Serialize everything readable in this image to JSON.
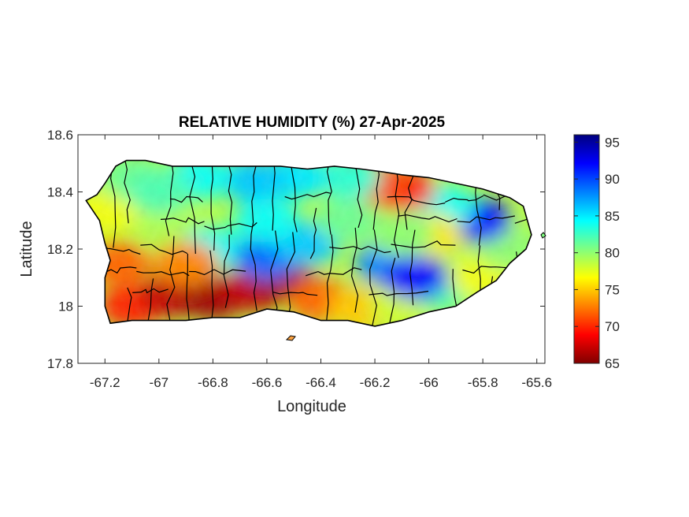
{
  "chart_data": {
    "type": "heatmap",
    "title": "RELATIVE HUMIDITY (%) 27-Apr-2025",
    "xlabel": "Longitude",
    "ylabel": "Latitude",
    "xlim": [
      -67.3,
      -65.57
    ],
    "ylim": [
      17.8,
      18.6
    ],
    "x_ticks": [
      -67.2,
      -67,
      -66.8,
      -66.6,
      -66.4,
      -66.2,
      -66,
      -65.8,
      -65.6
    ],
    "x_tick_labels": [
      "-67.2",
      "-67",
      "-66.8",
      "-66.6",
      "-66.4",
      "-66.2",
      "-66",
      "-65.8",
      "-65.6"
    ],
    "y_ticks": [
      17.8,
      18,
      18.2,
      18.4,
      18.6
    ],
    "y_tick_labels": [
      "17.8",
      "18",
      "18.2",
      "18.4",
      "18.6"
    ],
    "grid": false,
    "colorbar": {
      "min": 65,
      "max": 96,
      "ticks": [
        65,
        70,
        75,
        80,
        85,
        90,
        95
      ],
      "tick_labels": [
        "65",
        "70",
        "75",
        "80",
        "85",
        "90",
        "95"
      ],
      "colormap": "jet-reversed",
      "colors": [
        "#800000",
        "#ff0000",
        "#ff8000",
        "#ffff00",
        "#80ff80",
        "#00ffff",
        "#0080ff",
        "#0000ff",
        "#000080"
      ]
    },
    "region": "Puerto Rico",
    "outline": [
      [
        -67.27,
        18.37
      ],
      [
        -67.23,
        18.39
      ],
      [
        -67.2,
        18.43
      ],
      [
        -67.16,
        18.49
      ],
      [
        -67.12,
        18.51
      ],
      [
        -67.05,
        18.51
      ],
      [
        -66.95,
        18.49
      ],
      [
        -66.85,
        18.49
      ],
      [
        -66.75,
        18.49
      ],
      [
        -66.65,
        18.49
      ],
      [
        -66.55,
        18.49
      ],
      [
        -66.45,
        18.48
      ],
      [
        -66.35,
        18.49
      ],
      [
        -66.25,
        18.48
      ],
      [
        -66.17,
        18.47
      ],
      [
        -66.1,
        18.46
      ],
      [
        -66.0,
        18.45
      ],
      [
        -65.9,
        18.43
      ],
      [
        -65.8,
        18.41
      ],
      [
        -65.7,
        18.38
      ],
      [
        -65.65,
        18.35
      ],
      [
        -65.62,
        18.25
      ],
      [
        -65.64,
        18.2
      ],
      [
        -65.7,
        18.15
      ],
      [
        -65.75,
        18.09
      ],
      [
        -65.82,
        18.05
      ],
      [
        -65.9,
        18.0
      ],
      [
        -66.0,
        17.98
      ],
      [
        -66.1,
        17.95
      ],
      [
        -66.2,
        17.93
      ],
      [
        -66.3,
        17.95
      ],
      [
        -66.4,
        17.95
      ],
      [
        -66.5,
        17.98
      ],
      [
        -66.6,
        17.99
      ],
      [
        -66.7,
        17.96
      ],
      [
        -66.8,
        17.96
      ],
      [
        -66.9,
        17.95
      ],
      [
        -67.0,
        17.95
      ],
      [
        -67.1,
        17.95
      ],
      [
        -67.18,
        17.94
      ],
      [
        -67.2,
        18.0
      ],
      [
        -67.2,
        18.1
      ],
      [
        -67.18,
        18.16
      ],
      [
        -67.2,
        18.22
      ],
      [
        -67.22,
        18.3
      ]
    ],
    "humidity_field": [
      {
        "lon": -67.2,
        "lat": 18.33,
        "value": 77
      },
      {
        "lon": -67.1,
        "lat": 18.45,
        "value": 81
      },
      {
        "lon": -67.15,
        "lat": 18.15,
        "value": 72
      },
      {
        "lon": -67.1,
        "lat": 18.0,
        "value": 70
      },
      {
        "lon": -66.95,
        "lat": 18.04,
        "value": 67
      },
      {
        "lon": -66.8,
        "lat": 18.03,
        "value": 66
      },
      {
        "lon": -66.65,
        "lat": 18.06,
        "value": 67
      },
      {
        "lon": -66.55,
        "lat": 18.1,
        "value": 66
      },
      {
        "lon": -66.4,
        "lat": 18.02,
        "value": 72
      },
      {
        "lon": -66.25,
        "lat": 17.99,
        "value": 75
      },
      {
        "lon": -66.1,
        "lat": 18.0,
        "value": 78
      },
      {
        "lon": -65.95,
        "lat": 18.06,
        "value": 82
      },
      {
        "lon": -65.8,
        "lat": 18.1,
        "value": 77
      },
      {
        "lon": -65.7,
        "lat": 18.2,
        "value": 80
      },
      {
        "lon": -65.82,
        "lat": 18.3,
        "value": 92
      },
      {
        "lon": -65.95,
        "lat": 18.35,
        "value": 84
      },
      {
        "lon": -66.1,
        "lat": 18.41,
        "value": 70
      },
      {
        "lon": -66.2,
        "lat": 18.43,
        "value": 71
      },
      {
        "lon": -66.3,
        "lat": 18.45,
        "value": 83
      },
      {
        "lon": -66.5,
        "lat": 18.45,
        "value": 85
      },
      {
        "lon": -66.65,
        "lat": 18.44,
        "value": 86
      },
      {
        "lon": -66.85,
        "lat": 18.45,
        "value": 84
      },
      {
        "lon": -67.0,
        "lat": 18.4,
        "value": 82
      },
      {
        "lon": -66.95,
        "lat": 18.25,
        "value": 79
      },
      {
        "lon": -66.8,
        "lat": 18.2,
        "value": 84
      },
      {
        "lon": -66.6,
        "lat": 18.17,
        "value": 89
      },
      {
        "lon": -66.45,
        "lat": 18.22,
        "value": 86
      },
      {
        "lon": -66.3,
        "lat": 18.3,
        "value": 81
      },
      {
        "lon": -66.15,
        "lat": 18.15,
        "value": 88
      },
      {
        "lon": -66.05,
        "lat": 18.1,
        "value": 92
      },
      {
        "lon": -66.0,
        "lat": 18.25,
        "value": 76
      },
      {
        "lon": -66.6,
        "lat": 18.3,
        "value": 84
      },
      {
        "lon": -66.9,
        "lat": 18.15,
        "value": 73
      },
      {
        "lon": -66.1,
        "lat": 18.25,
        "value": 80
      }
    ]
  }
}
